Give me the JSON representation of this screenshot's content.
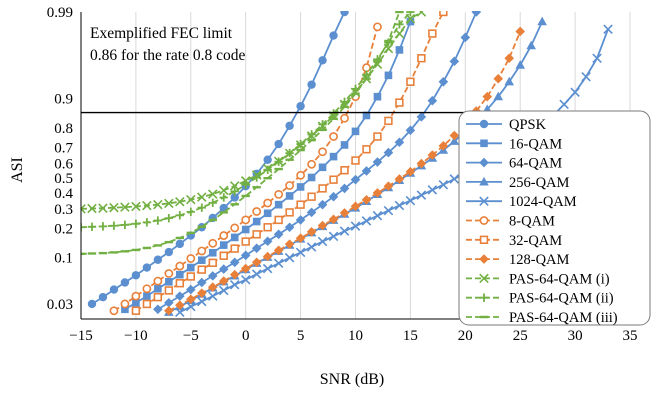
{
  "chart_data": {
    "type": "line",
    "title": "",
    "xlabel": "SNR (dB)",
    "ylabel": "ASI",
    "xlim": [
      -15,
      35
    ],
    "ylim": [
      0.02,
      0.99
    ],
    "y_scale": "logit",
    "grid": "vertical",
    "x_ticks": [
      -15,
      -10,
      -5,
      0,
      5,
      10,
      15,
      20,
      25,
      30,
      35
    ],
    "x_tick_labels": [
      "−15",
      "−10",
      "−5",
      "0",
      "5",
      "10",
      "15",
      "20",
      "25",
      "30",
      "35"
    ],
    "y_ticks": [
      0.03,
      0.1,
      0.2,
      0.3,
      0.4,
      0.5,
      0.6,
      0.7,
      0.8,
      0.9,
      0.99
    ],
    "y_tick_labels": [
      "0.03",
      "0.1",
      "0.2",
      "0.3",
      "0.4",
      "0.5",
      "0.6",
      "0.7",
      "0.8",
      "0.9",
      "0.99"
    ],
    "fec_limit": {
      "value": 0.86,
      "label_line1": "Exemplified FEC limit",
      "label_line2": "0.86 for the rate 0.8 code"
    },
    "legend_position": "right",
    "colors": {
      "blue": "#5b8fd0",
      "orange": "#e8803a",
      "green": "#72b043"
    },
    "series": [
      {
        "name": "QPSK",
        "color": "#5b8fd0",
        "marker": "circle",
        "style": "solid",
        "x": [
          -14,
          -13,
          -12,
          -11,
          -10,
          -9,
          -8,
          -7,
          -6,
          -5,
          -4,
          -3,
          -2,
          -1,
          0,
          1,
          2,
          3,
          4,
          5,
          6,
          7,
          8,
          9
        ],
        "y": [
          0.03,
          0.036,
          0.044,
          0.053,
          0.064,
          0.078,
          0.095,
          0.115,
          0.14,
          0.17,
          0.205,
          0.25,
          0.305,
          0.37,
          0.445,
          0.53,
          0.625,
          0.72,
          0.81,
          0.88,
          0.93,
          0.963,
          0.981,
          0.99
        ]
      },
      {
        "name": "16-QAM",
        "color": "#5b8fd0",
        "marker": "square",
        "style": "solid",
        "x": [
          -11,
          -10,
          -9,
          -8,
          -7,
          -6,
          -5,
          -4,
          -3,
          -2,
          -1,
          0,
          1,
          2,
          3,
          4,
          5,
          6,
          7,
          8,
          9,
          10,
          11,
          12,
          13,
          14,
          15
        ],
        "y": [
          0.026,
          0.031,
          0.037,
          0.045,
          0.054,
          0.065,
          0.078,
          0.094,
          0.113,
          0.136,
          0.163,
          0.195,
          0.232,
          0.275,
          0.325,
          0.38,
          0.44,
          0.505,
          0.575,
          0.645,
          0.715,
          0.785,
          0.85,
          0.905,
          0.945,
          0.972,
          0.987
        ]
      },
      {
        "name": "64-QAM",
        "color": "#5b8fd0",
        "marker": "diamond",
        "style": "solid",
        "x": [
          -8,
          -7,
          -6,
          -5,
          -4,
          -3,
          -2,
          -1,
          0,
          1,
          2,
          3,
          4,
          5,
          6,
          7,
          8,
          9,
          10,
          11,
          12,
          13,
          14,
          15,
          16,
          17,
          18,
          19,
          20,
          21
        ],
        "y": [
          0.026,
          0.031,
          0.037,
          0.044,
          0.053,
          0.063,
          0.075,
          0.089,
          0.106,
          0.126,
          0.149,
          0.175,
          0.205,
          0.24,
          0.28,
          0.325,
          0.375,
          0.43,
          0.49,
          0.55,
          0.61,
          0.67,
          0.73,
          0.79,
          0.845,
          0.895,
          0.935,
          0.962,
          0.98,
          0.99
        ]
      },
      {
        "name": "256-QAM",
        "color": "#5b8fd0",
        "marker": "triangle",
        "style": "solid",
        "x": [
          -7,
          -6,
          -5,
          -4,
          -3,
          -2,
          -1,
          0,
          1,
          2,
          3,
          4,
          5,
          6,
          7,
          8,
          9,
          10,
          11,
          12,
          13,
          14,
          15,
          16,
          17,
          18,
          19,
          20,
          21,
          22,
          23,
          24,
          25,
          26,
          27
        ],
        "y": [
          0.024,
          0.028,
          0.033,
          0.039,
          0.046,
          0.054,
          0.063,
          0.074,
          0.087,
          0.101,
          0.117,
          0.136,
          0.157,
          0.181,
          0.208,
          0.238,
          0.27,
          0.305,
          0.345,
          0.39,
          0.435,
          0.485,
          0.535,
          0.585,
          0.635,
          0.685,
          0.735,
          0.785,
          0.83,
          0.87,
          0.905,
          0.935,
          0.958,
          0.975,
          0.987
        ]
      },
      {
        "name": "1024-QAM",
        "color": "#5b8fd0",
        "marker": "x",
        "style": "solid",
        "x": [
          -6,
          -5,
          -4,
          -3,
          -2,
          -1,
          0,
          1,
          2,
          3,
          4,
          5,
          6,
          7,
          8,
          9,
          10,
          11,
          12,
          13,
          14,
          15,
          16,
          17,
          18,
          19,
          20,
          21,
          22,
          23,
          24,
          25,
          26,
          27,
          28,
          29,
          30,
          31,
          32,
          33
        ],
        "y": [
          0.024,
          0.028,
          0.032,
          0.037,
          0.043,
          0.05,
          0.057,
          0.066,
          0.076,
          0.087,
          0.1,
          0.114,
          0.13,
          0.148,
          0.167,
          0.188,
          0.21,
          0.235,
          0.262,
          0.29,
          0.32,
          0.35,
          0.385,
          0.42,
          0.455,
          0.495,
          0.535,
          0.575,
          0.615,
          0.655,
          0.695,
          0.735,
          0.775,
          0.815,
          0.85,
          0.885,
          0.915,
          0.943,
          0.965,
          0.984
        ]
      },
      {
        "name": "8-QAM",
        "color": "#e8803a",
        "marker": "circle-open",
        "style": "dashed",
        "x": [
          -12,
          -11,
          -10,
          -9,
          -8,
          -7,
          -6,
          -5,
          -4,
          -3,
          -2,
          -1,
          0,
          1,
          2,
          3,
          4,
          5,
          6,
          7,
          8,
          9,
          10,
          11,
          12
        ],
        "y": [
          0.025,
          0.03,
          0.037,
          0.045,
          0.055,
          0.067,
          0.081,
          0.098,
          0.118,
          0.142,
          0.17,
          0.202,
          0.24,
          0.285,
          0.335,
          0.39,
          0.45,
          0.52,
          0.595,
          0.675,
          0.76,
          0.84,
          0.905,
          0.955,
          0.985
        ]
      },
      {
        "name": "32-QAM",
        "color": "#e8803a",
        "marker": "square-open",
        "style": "dashed",
        "x": [
          -10,
          -9,
          -8,
          -7,
          -6,
          -5,
          -4,
          -3,
          -2,
          -1,
          0,
          1,
          2,
          3,
          4,
          5,
          6,
          7,
          8,
          9,
          10,
          11,
          12,
          13,
          14,
          15,
          16,
          17,
          18
        ],
        "y": [
          0.025,
          0.03,
          0.036,
          0.043,
          0.052,
          0.062,
          0.074,
          0.088,
          0.105,
          0.125,
          0.148,
          0.175,
          0.205,
          0.24,
          0.28,
          0.325,
          0.375,
          0.43,
          0.49,
          0.555,
          0.62,
          0.69,
          0.76,
          0.83,
          0.89,
          0.935,
          0.965,
          0.982,
          0.99
        ]
      },
      {
        "name": "128-QAM",
        "color": "#e8803a",
        "marker": "diamond",
        "style": "dashed",
        "x": [
          -7,
          -6,
          -5,
          -4,
          -3,
          -2,
          -1,
          0,
          1,
          2,
          3,
          4,
          5,
          6,
          7,
          8,
          9,
          10,
          11,
          12,
          13,
          14,
          15,
          16,
          17,
          18,
          19,
          20,
          21,
          22,
          23,
          24,
          25
        ],
        "y": [
          0.025,
          0.029,
          0.034,
          0.04,
          0.047,
          0.055,
          0.065,
          0.076,
          0.089,
          0.103,
          0.12,
          0.139,
          0.16,
          0.185,
          0.213,
          0.243,
          0.277,
          0.315,
          0.355,
          0.4,
          0.445,
          0.495,
          0.545,
          0.6,
          0.655,
          0.71,
          0.765,
          0.815,
          0.865,
          0.905,
          0.94,
          0.965,
          0.983
        ]
      },
      {
        "name": "PAS-64-QAM (i)",
        "color": "#72b043",
        "marker": "x",
        "style": "dashed",
        "x": [
          -15,
          -14,
          -13,
          -12,
          -11,
          -10,
          -9,
          -8,
          -7,
          -6,
          -5,
          -4,
          -3,
          -2,
          -1,
          0,
          1,
          2,
          3,
          4,
          5,
          6,
          7,
          8,
          9,
          10,
          11,
          12,
          13,
          14,
          15,
          16
        ],
        "y": [
          0.3,
          0.302,
          0.304,
          0.307,
          0.31,
          0.314,
          0.319,
          0.325,
          0.333,
          0.343,
          0.356,
          0.372,
          0.392,
          0.417,
          0.447,
          0.482,
          0.522,
          0.567,
          0.615,
          0.665,
          0.715,
          0.763,
          0.808,
          0.849,
          0.885,
          0.915,
          0.94,
          0.959,
          0.973,
          0.982,
          0.988,
          0.99
        ]
      },
      {
        "name": "PAS-64-QAM (ii)",
        "color": "#72b043",
        "marker": "plus",
        "style": "dashed",
        "x": [
          -15,
          -14,
          -13,
          -12,
          -11,
          -10,
          -9,
          -8,
          -7,
          -6,
          -5,
          -4,
          -3,
          -2,
          -1,
          0,
          1,
          2,
          3,
          4,
          5,
          6,
          7,
          8,
          9,
          10,
          11,
          12,
          13,
          14,
          15
        ],
        "y": [
          0.205,
          0.207,
          0.209,
          0.212,
          0.216,
          0.221,
          0.228,
          0.237,
          0.249,
          0.264,
          0.283,
          0.307,
          0.336,
          0.37,
          0.41,
          0.455,
          0.505,
          0.558,
          0.612,
          0.667,
          0.72,
          0.77,
          0.816,
          0.857,
          0.892,
          0.922,
          0.946,
          0.964,
          0.977,
          0.986,
          0.99
        ]
      },
      {
        "name": "PAS-64-QAM (iii)",
        "color": "#72b043",
        "marker": "dash",
        "style": "dashed",
        "x": [
          -15,
          -14,
          -13,
          -12,
          -11,
          -10,
          -9,
          -8,
          -7,
          -6,
          -5,
          -4,
          -3,
          -2,
          -1,
          0,
          1,
          2,
          3,
          4,
          5,
          6,
          7,
          8,
          9,
          10,
          11,
          12,
          13,
          14
        ],
        "y": [
          0.11,
          0.111,
          0.112,
          0.114,
          0.117,
          0.121,
          0.127,
          0.135,
          0.146,
          0.161,
          0.181,
          0.207,
          0.24,
          0.28,
          0.327,
          0.38,
          0.438,
          0.5,
          0.563,
          0.625,
          0.685,
          0.741,
          0.792,
          0.838,
          0.878,
          0.912,
          0.94,
          0.962,
          0.978,
          0.99
        ]
      }
    ]
  }
}
